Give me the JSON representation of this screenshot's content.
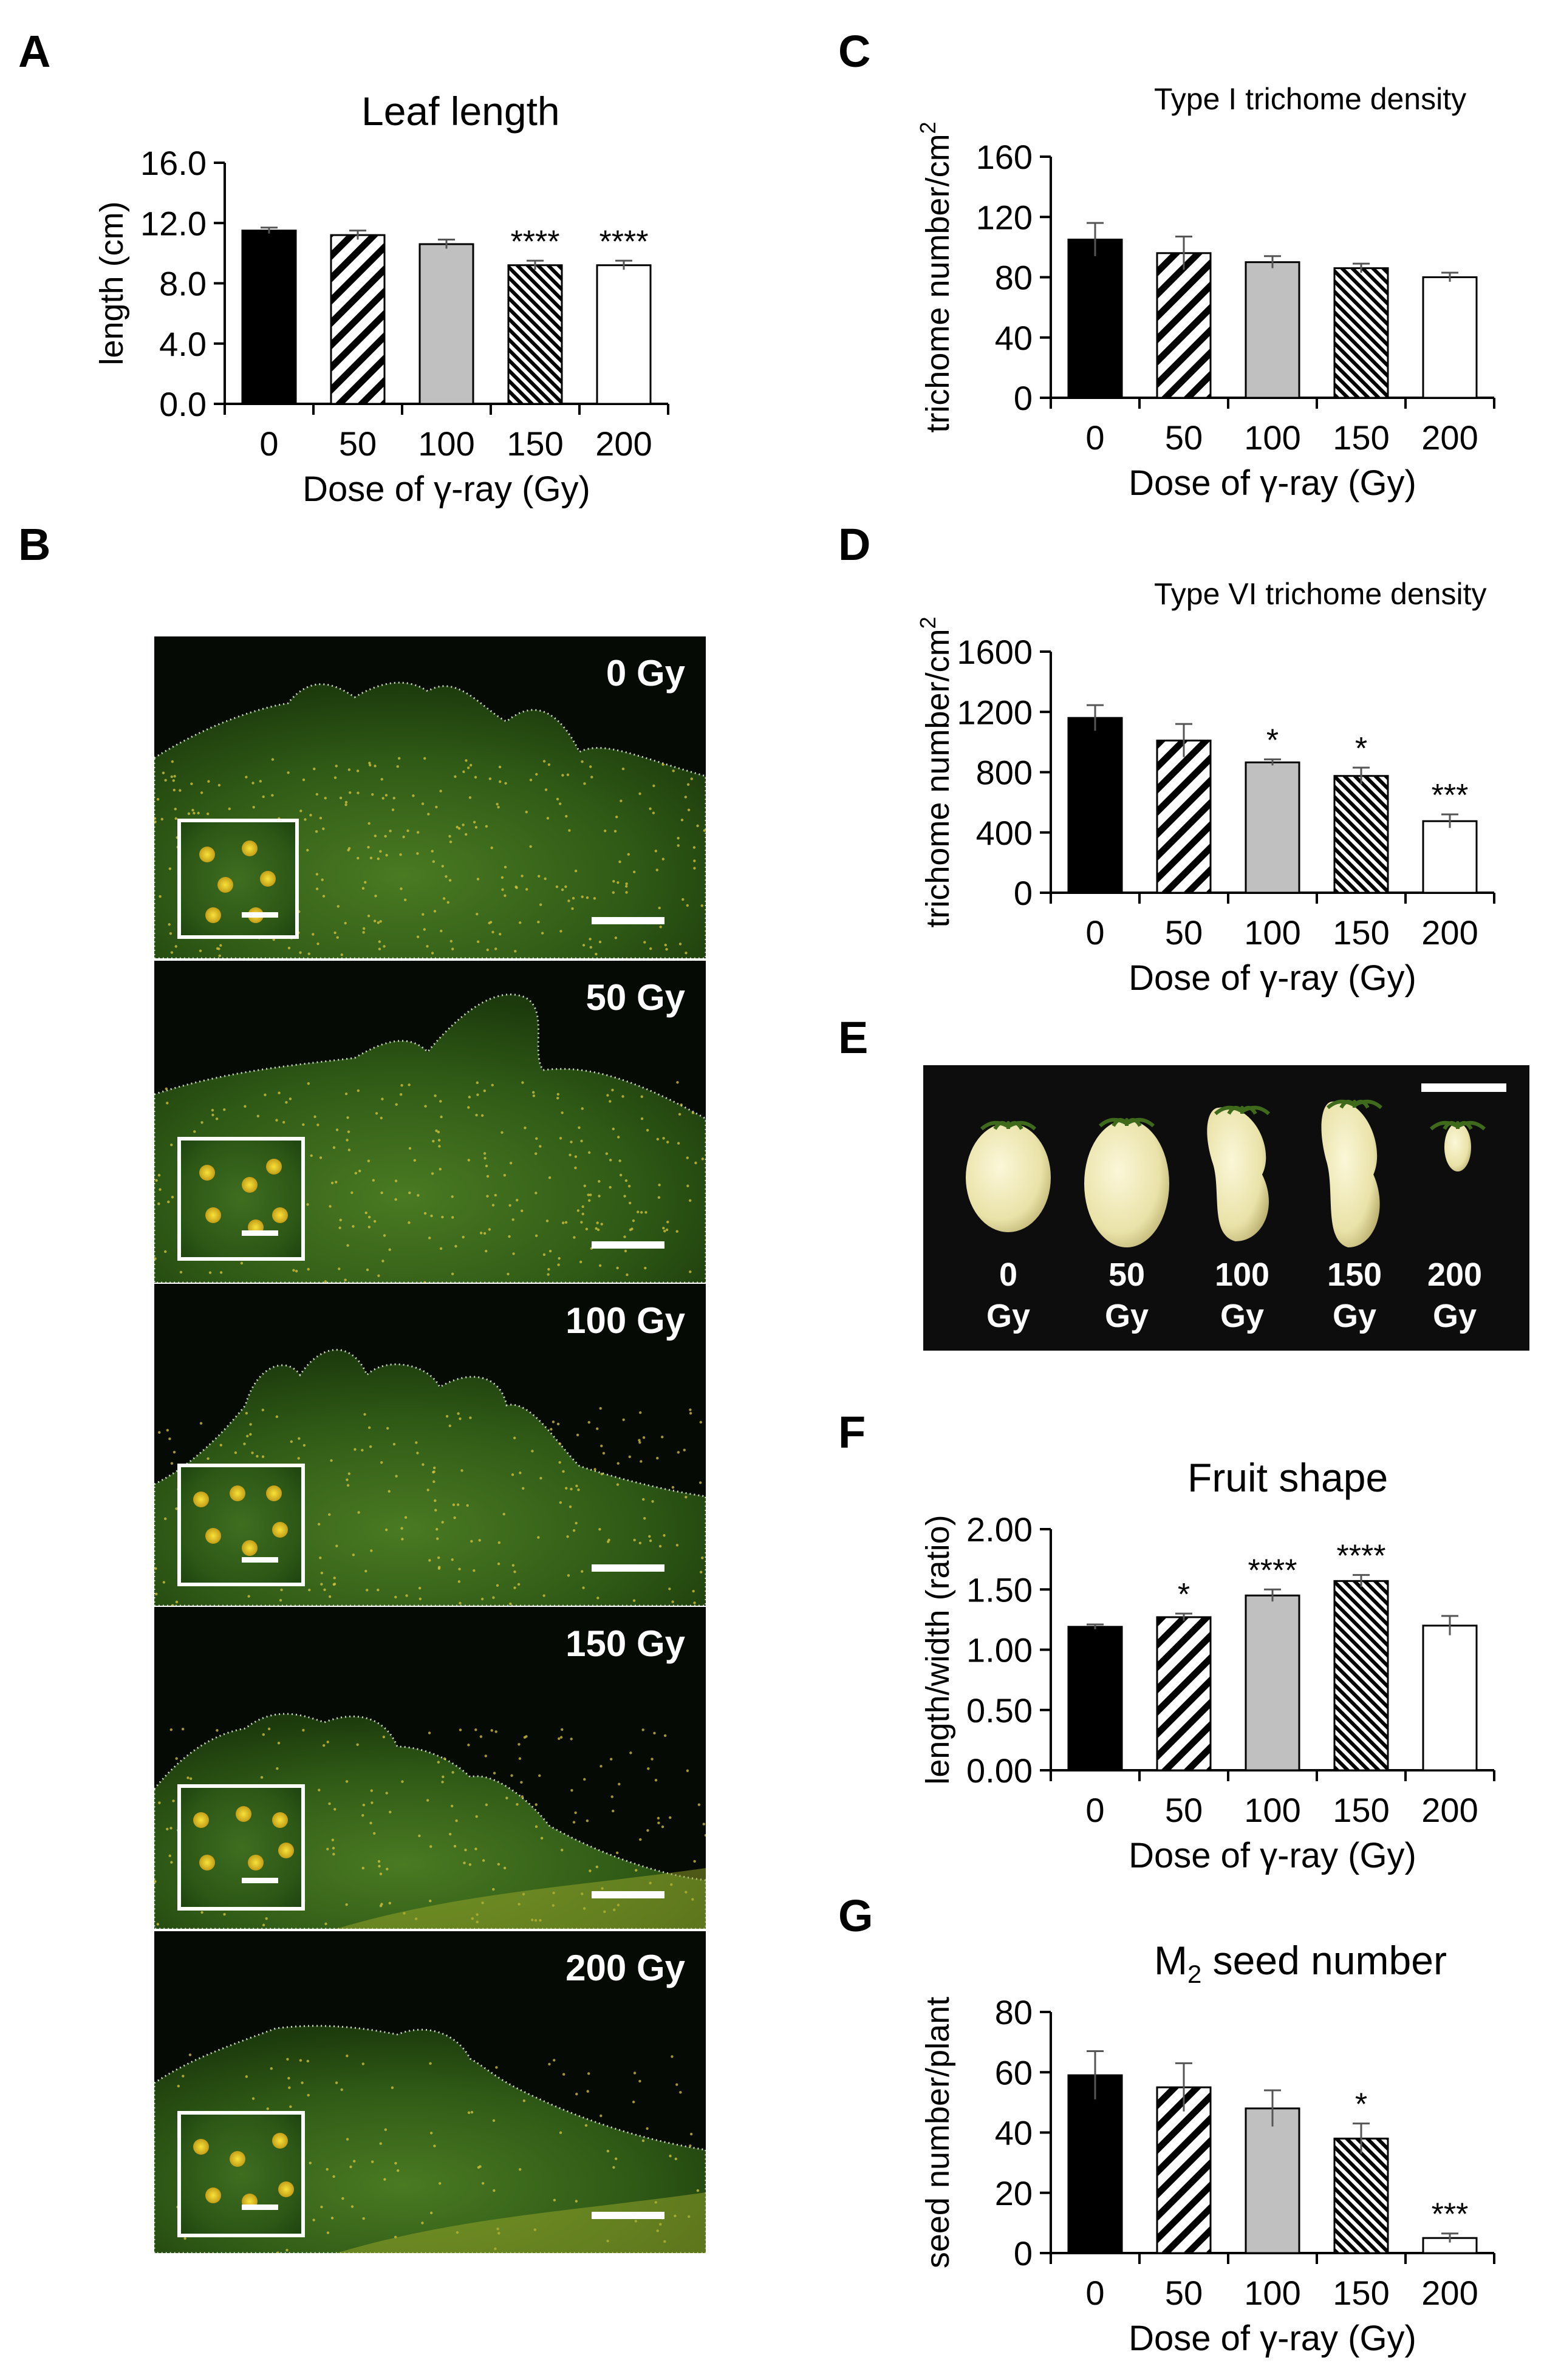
{
  "panels": {
    "A": "A",
    "B": "B",
    "C": "C",
    "D": "D",
    "E": "E",
    "F": "F",
    "G": "G"
  },
  "colors": {
    "bar_0": "#000000",
    "bar_50": "diagonal-hatch",
    "bar_100": "#c0c0c0",
    "bar_150": "dense-hatch",
    "bar_200": "#ffffff",
    "axis": "#000000",
    "error_bar": "#555555"
  },
  "photo_panel_B": {
    "leaves": [
      {
        "label": "0 Gy"
      },
      {
        "label": "50 Gy"
      },
      {
        "label": "100 Gy"
      },
      {
        "label": "150 Gy"
      },
      {
        "label": "200 Gy"
      }
    ]
  },
  "photo_panel_E": {
    "fruits": [
      {
        "dose": "0",
        "unit": "Gy"
      },
      {
        "dose": "50",
        "unit": "Gy"
      },
      {
        "dose": "100",
        "unit": "Gy"
      },
      {
        "dose": "150",
        "unit": "Gy"
      },
      {
        "dose": "200",
        "unit": "Gy"
      }
    ]
  },
  "chart_data": [
    {
      "id": "A",
      "type": "bar",
      "title": "Leaf length",
      "xlabel": "Dose of γ-ray (Gy)",
      "ylabel": "length (cm)",
      "categories": [
        "0",
        "50",
        "100",
        "150",
        "200"
      ],
      "values": [
        11.5,
        11.2,
        10.6,
        9.2,
        9.2
      ],
      "errors": [
        0.2,
        0.3,
        0.3,
        0.3,
        0.3
      ],
      "significance": [
        "",
        "",
        "",
        "****",
        "****"
      ],
      "ylim": [
        0,
        16
      ],
      "yticks": [
        "0.0",
        "4.0",
        "8.0",
        "12.0",
        "16.0"
      ],
      "ytick_values": [
        0,
        4,
        8,
        12,
        16
      ]
    },
    {
      "id": "C",
      "type": "bar",
      "title": "Type I trichome density",
      "xlabel": "Dose of γ-ray (Gy)",
      "ylabel": "trichome number/cm",
      "ylabel_sup": "2",
      "categories": [
        "0",
        "50",
        "100",
        "150",
        "200"
      ],
      "values": [
        105,
        96,
        90,
        86,
        80
      ],
      "errors": [
        11,
        11,
        4,
        3,
        3
      ],
      "significance": [
        "",
        "",
        "",
        "",
        ""
      ],
      "ylim": [
        0,
        160
      ],
      "yticks": [
        "0",
        "40",
        "80",
        "120",
        "160"
      ],
      "ytick_values": [
        0,
        40,
        80,
        120,
        160
      ]
    },
    {
      "id": "D",
      "type": "bar",
      "title": "Type VI trichome density",
      "xlabel": "Dose of γ-ray (Gy)",
      "ylabel": "trichome number/cm",
      "ylabel_sup": "2",
      "categories": [
        "0",
        "50",
        "100",
        "150",
        "200"
      ],
      "values": [
        1160,
        1010,
        865,
        775,
        475
      ],
      "errors": [
        85,
        110,
        20,
        55,
        45
      ],
      "significance": [
        "",
        "",
        "*",
        "*",
        "***"
      ],
      "ylim": [
        0,
        1600
      ],
      "yticks": [
        "0",
        "400",
        "800",
        "1200",
        "1600"
      ],
      "ytick_values": [
        0,
        400,
        800,
        1200,
        1600
      ]
    },
    {
      "id": "F",
      "type": "bar",
      "title": "Fruit shape",
      "xlabel": "Dose of γ-ray (Gy)",
      "ylabel": "length/width (ratio)",
      "categories": [
        "0",
        "50",
        "100",
        "150",
        "200"
      ],
      "values": [
        1.19,
        1.27,
        1.45,
        1.57,
        1.2
      ],
      "errors": [
        0.02,
        0.03,
        0.05,
        0.05,
        0.08
      ],
      "significance": [
        "",
        "*",
        "****",
        "****",
        ""
      ],
      "ylim": [
        0,
        2
      ],
      "yticks": [
        "0.00",
        "0.50",
        "1.00",
        "1.50",
        "2.00"
      ],
      "ytick_values": [
        0,
        0.5,
        1,
        1.5,
        2
      ]
    },
    {
      "id": "G",
      "type": "bar",
      "title": "M",
      "title_sub": "2",
      "title_rest": " seed number",
      "xlabel": "Dose of γ-ray (Gy)",
      "ylabel": "seed number/plant",
      "categories": [
        "0",
        "50",
        "100",
        "150",
        "200"
      ],
      "values": [
        59,
        55,
        48,
        38,
        5
      ],
      "errors": [
        8,
        8,
        6,
        5,
        1.5
      ],
      "significance": [
        "",
        "",
        "",
        "*",
        "***"
      ],
      "ylim": [
        0,
        80
      ],
      "yticks": [
        "0",
        "20",
        "40",
        "60",
        "80"
      ],
      "ytick_values": [
        0,
        20,
        40,
        60,
        80
      ]
    }
  ]
}
